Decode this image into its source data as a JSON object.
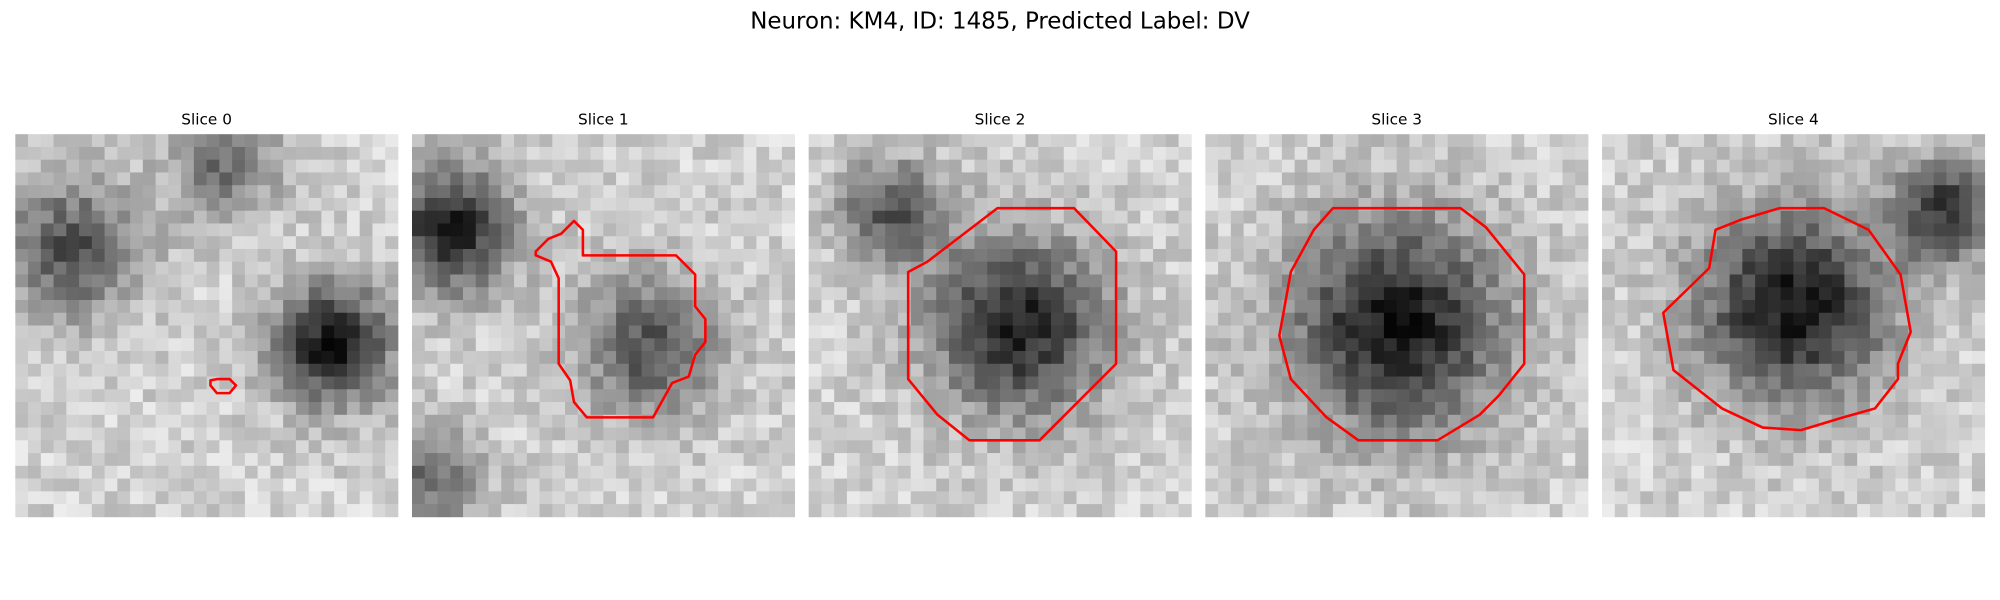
{
  "title": "Neuron: KM4, ID: 1485, Predicted Label: DV",
  "panels": [
    {
      "title": "Slice 0"
    },
    {
      "title": "Slice 1"
    },
    {
      "title": "Slice 2"
    },
    {
      "title": "Slice 3"
    },
    {
      "title": "Slice 4"
    }
  ]
}
